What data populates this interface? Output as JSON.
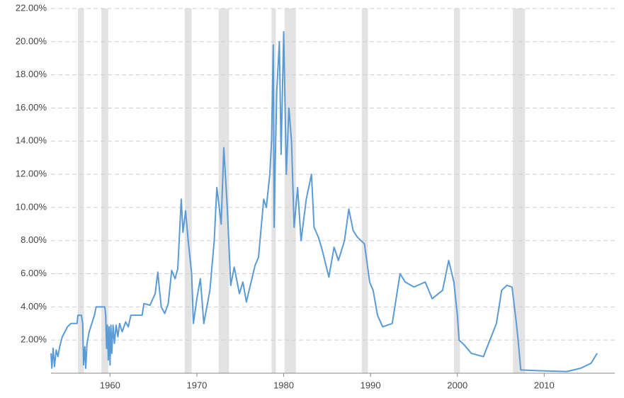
{
  "chart_data": {
    "type": "line",
    "xlim": [
      1953.2,
      2016.5
    ],
    "xticks": [
      1960,
      1970,
      1980,
      1990,
      2000,
      2010
    ],
    "ylim": [
      0,
      22
    ],
    "yticks": [
      {
        "value": 2,
        "label": "2.00%"
      },
      {
        "value": 4,
        "label": "4.00%"
      },
      {
        "value": 6,
        "label": "6.00%"
      },
      {
        "value": 8,
        "label": "8.00%"
      },
      {
        "value": 10,
        "label": "10.00%"
      },
      {
        "value": 12,
        "label": "12.00%"
      },
      {
        "value": 14,
        "label": "14.00%"
      },
      {
        "value": 16,
        "label": "16.00%"
      },
      {
        "value": 18,
        "label": "18.00%"
      },
      {
        "value": 20,
        "label": "20.00%"
      },
      {
        "value": 22,
        "label": "22.00%"
      }
    ],
    "grid": true,
    "recession_color": "#e3e3e3",
    "recessions": [
      [
        1956.3,
        1957.0
      ],
      [
        1959.0,
        1959.8
      ],
      [
        1968.6,
        1969.4
      ],
      [
        1972.5,
        1973.7
      ],
      [
        1978.6,
        1979.1
      ],
      [
        1980.1,
        1981.4
      ],
      [
        1989.0,
        1989.7
      ],
      [
        1999.6,
        2000.3
      ],
      [
        2006.4,
        2007.8
      ]
    ],
    "x": [
      1953.2,
      1953.3,
      1953.45,
      1953.6,
      1953.8,
      1954.0,
      1954.2,
      1954.5,
      1954.8,
      1955.1,
      1955.5,
      1956.2,
      1956.3,
      1956.7,
      1956.85,
      1956.95,
      1957.1,
      1957.2,
      1957.35,
      1957.6,
      1957.9,
      1958.2,
      1958.4,
      1959.4,
      1959.5,
      1959.6,
      1959.7,
      1959.8,
      1959.9,
      1960.0,
      1960.1,
      1960.2,
      1960.35,
      1960.5,
      1960.7,
      1960.9,
      1961.1,
      1961.4,
      1961.8,
      1962.1,
      1962.4,
      1963.7,
      1963.9,
      1964.6,
      1965.2,
      1965.5,
      1965.7,
      1965.9,
      1966.3,
      1966.7,
      1967.1,
      1967.5,
      1967.8,
      1968.2,
      1968.4,
      1968.7,
      1969.0,
      1969.4,
      1969.6,
      1970.0,
      1970.4,
      1970.8,
      1971.5,
      1972.0,
      1972.3,
      1972.8,
      1973.1,
      1973.5,
      1973.9,
      1974.3,
      1974.9,
      1975.3,
      1975.7,
      1976.7,
      1977.1,
      1977.7,
      1978.0,
      1978.4,
      1978.6,
      1978.8,
      1978.9,
      1979.0,
      1979.2,
      1979.5,
      1979.7,
      1980.0,
      1980.3,
      1980.6,
      1980.9,
      1981.2,
      1981.6,
      1982.0,
      1982.6,
      1983.2,
      1983.5,
      1984.0,
      1984.4,
      1985.2,
      1985.8,
      1986.3,
      1987.0,
      1987.5,
      1988.0,
      1988.5,
      1989.3,
      1989.9,
      1990.3,
      1990.8,
      1991.4,
      1992.5,
      1993.4,
      1994.0,
      1995.0,
      1996.3,
      1997.1,
      1998.3,
      1999.0,
      1999.6,
      2000.0,
      2000.2,
      2000.8,
      2001.6,
      2003.0,
      2004.5,
      2005.1,
      2005.7,
      2006.3,
      2006.8,
      2007.0,
      2007.3,
      2009.4,
      2012.6,
      2014.2,
      2015.4,
      2016.1
    ],
    "series": [
      {
        "color": "#5b9bd5",
        "values": [
          1.2,
          0.3,
          1.5,
          0.4,
          1.4,
          1.0,
          1.6,
          2.2,
          2.5,
          2.8,
          3.0,
          3.0,
          3.5,
          3.5,
          3.0,
          0.5,
          1.6,
          0.3,
          1.8,
          2.5,
          3.0,
          3.5,
          4.0,
          4.0,
          3.5,
          1.5,
          2.9,
          0.8,
          2.8,
          0.5,
          2.9,
          1.2,
          2.9,
          1.8,
          2.9,
          2.2,
          3.0,
          2.5,
          3.1,
          2.8,
          3.5,
          3.5,
          4.2,
          4.1,
          4.8,
          6.1,
          5.0,
          4.0,
          3.6,
          4.2,
          6.2,
          5.7,
          6.3,
          10.5,
          8.5,
          9.8,
          8.0,
          6.0,
          3.0,
          4.5,
          5.7,
          3.0,
          5.0,
          8.0,
          11.2,
          9.0,
          13.6,
          10.0,
          5.3,
          6.4,
          4.8,
          5.5,
          4.3,
          6.5,
          7.0,
          10.5,
          10.0,
          12.0,
          14.0,
          19.8,
          8.8,
          12.0,
          17.0,
          20.0,
          13.2,
          20.6,
          12.0,
          16.0,
          14.0,
          8.8,
          11.2,
          8.0,
          10.5,
          12.0,
          8.8,
          8.2,
          7.5,
          5.8,
          7.6,
          6.8,
          8.0,
          9.9,
          8.6,
          8.2,
          7.8,
          5.5,
          5.0,
          3.5,
          2.8,
          3.0,
          6.0,
          5.5,
          5.2,
          5.5,
          4.5,
          5.0,
          6.8,
          5.5,
          3.5,
          2.0,
          1.7,
          1.2,
          1.0,
          3.0,
          5.0,
          5.3,
          5.2,
          3.0,
          2.0,
          0.2,
          0.15,
          0.1,
          0.3,
          0.6,
          1.2
        ]
      }
    ]
  }
}
